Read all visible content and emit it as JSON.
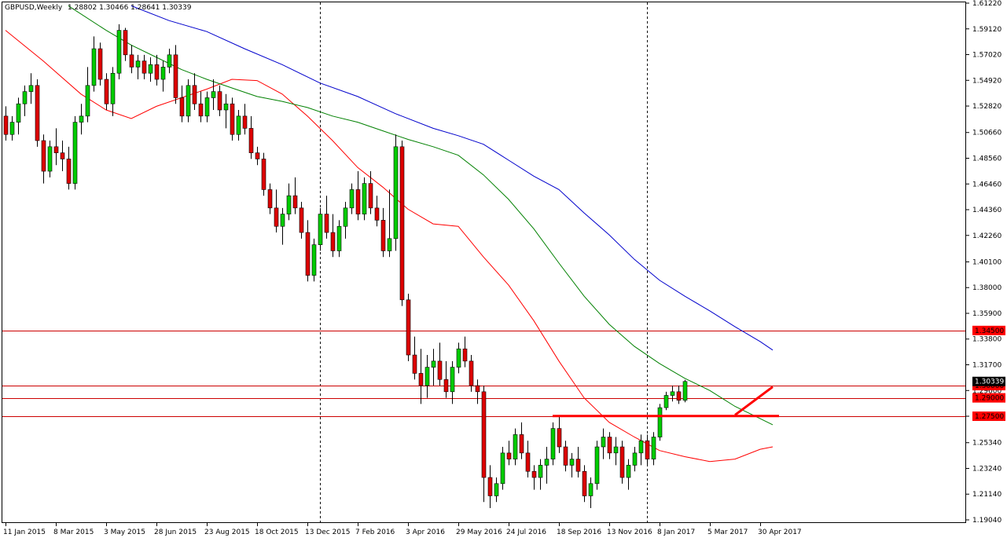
{
  "header": {
    "symbol": "GBPUSD,Weekly",
    "ohlc": "1.28802 1.30466 1.28641 1.30339"
  },
  "colors": {
    "bull": "#00cc00",
    "bear": "#dd0000",
    "wick": "#000000",
    "ma_red": "#ff0000",
    "ma_green": "#008000",
    "ma_blue": "#0000cc",
    "level_line": "#cc0000",
    "level_bg": "#ff0000",
    "axis": "#000000",
    "grid_dashed": "#000000"
  },
  "chart_data": {
    "type": "candlestick",
    "timeframe": "Weekly",
    "ylim": [
      1.19,
      1.6122
    ],
    "y_ticks": [
      1.6122,
      1.5912,
      1.5702,
      1.5492,
      1.5282,
      1.5066,
      1.4856,
      1.4646,
      1.4436,
      1.4226,
      1.401,
      1.38,
      1.359,
      1.338,
      1.317,
      1.296,
      1.275,
      1.2534,
      1.2324,
      1.2114,
      1.1904
    ],
    "x_ticks": [
      {
        "label": "11 Jan 2015",
        "index": 0
      },
      {
        "label": "8 Mar 2015",
        "index": 8
      },
      {
        "label": "3 May 2015",
        "index": 16
      },
      {
        "label": "28 Jun 2015",
        "index": 24
      },
      {
        "label": "23 Aug 2015",
        "index": 32
      },
      {
        "label": "18 Oct 2015",
        "index": 40
      },
      {
        "label": "13 Dec 2015",
        "index": 48
      },
      {
        "label": "7 Feb 2016",
        "index": 56
      },
      {
        "label": "3 Apr 2016",
        "index": 64
      },
      {
        "label": "29 May 2016",
        "index": 72
      },
      {
        "label": "24 Jul 2016",
        "index": 80
      },
      {
        "label": "18 Sep 2016",
        "index": 88
      },
      {
        "label": "13 Nov 2016",
        "index": 96
      },
      {
        "label": "8 Jan 2017",
        "index": 104
      },
      {
        "label": "5 Mar 2017",
        "index": 112
      },
      {
        "label": "30 Apr 2017",
        "index": 120
      }
    ],
    "period_separators": [
      50,
      102
    ],
    "levels": [
      {
        "value": 1.345,
        "label": "1.34500"
      },
      {
        "value": 1.3,
        "label": "1.30000"
      },
      {
        "value": 1.29,
        "label": "1.29000"
      },
      {
        "value": 1.275,
        "label": "1.27500"
      }
    ],
    "current_price": {
      "value": 1.30339,
      "label": "1.30339"
    },
    "drawn_lines": [
      {
        "from": {
          "index": 87,
          "value": 1.2752
        },
        "to": {
          "index": 123,
          "value": 1.2752
        }
      },
      {
        "from": {
          "index": 116,
          "value": 1.276
        },
        "to": {
          "index": 122,
          "value": 1.299
        }
      }
    ],
    "moving_averages": [
      {
        "color_key": "ma_red",
        "points": [
          [
            0,
            1.59
          ],
          [
            6,
            1.565
          ],
          [
            12,
            1.538
          ],
          [
            16,
            1.525
          ],
          [
            20,
            1.518
          ],
          [
            24,
            1.528
          ],
          [
            28,
            1.535
          ],
          [
            32,
            1.542
          ],
          [
            36,
            1.55
          ],
          [
            40,
            1.549
          ],
          [
            44,
            1.538
          ],
          [
            48,
            1.52
          ],
          [
            52,
            1.5
          ],
          [
            56,
            1.478
          ],
          [
            60,
            1.462
          ],
          [
            64,
            1.444
          ],
          [
            68,
            1.432
          ],
          [
            72,
            1.43
          ],
          [
            76,
            1.405
          ],
          [
            80,
            1.382
          ],
          [
            84,
            1.353
          ],
          [
            88,
            1.32
          ],
          [
            92,
            1.29
          ],
          [
            96,
            1.27
          ],
          [
            100,
            1.258
          ],
          [
            104,
            1.247
          ],
          [
            108,
            1.242
          ],
          [
            112,
            1.238
          ],
          [
            116,
            1.24
          ],
          [
            120,
            1.248
          ],
          [
            122,
            1.25
          ]
        ]
      },
      {
        "color_key": "ma_green",
        "points": [
          [
            10,
            1.61
          ],
          [
            16,
            1.59
          ],
          [
            20,
            1.578
          ],
          [
            24,
            1.568
          ],
          [
            28,
            1.558
          ],
          [
            32,
            1.55
          ],
          [
            36,
            1.543
          ],
          [
            40,
            1.536
          ],
          [
            44,
            1.532
          ],
          [
            48,
            1.527
          ],
          [
            52,
            1.52
          ],
          [
            56,
            1.515
          ],
          [
            60,
            1.508
          ],
          [
            64,
            1.501
          ],
          [
            68,
            1.495
          ],
          [
            72,
            1.488
          ],
          [
            76,
            1.472
          ],
          [
            80,
            1.452
          ],
          [
            84,
            1.428
          ],
          [
            88,
            1.4
          ],
          [
            92,
            1.373
          ],
          [
            96,
            1.35
          ],
          [
            100,
            1.332
          ],
          [
            104,
            1.318
          ],
          [
            108,
            1.306
          ],
          [
            112,
            1.296
          ],
          [
            116,
            1.283
          ],
          [
            120,
            1.273
          ],
          [
            122,
            1.268
          ]
        ]
      },
      {
        "color_key": "ma_blue",
        "points": [
          [
            20,
            1.61
          ],
          [
            26,
            1.598
          ],
          [
            32,
            1.589
          ],
          [
            38,
            1.575
          ],
          [
            44,
            1.562
          ],
          [
            50,
            1.547
          ],
          [
            56,
            1.536
          ],
          [
            62,
            1.522
          ],
          [
            68,
            1.51
          ],
          [
            72,
            1.504
          ],
          [
            76,
            1.497
          ],
          [
            80,
            1.484
          ],
          [
            84,
            1.471
          ],
          [
            88,
            1.46
          ],
          [
            92,
            1.441
          ],
          [
            96,
            1.423
          ],
          [
            100,
            1.403
          ],
          [
            104,
            1.386
          ],
          [
            108,
            1.373
          ],
          [
            112,
            1.361
          ],
          [
            116,
            1.348
          ],
          [
            120,
            1.336
          ],
          [
            122,
            1.329
          ]
        ]
      }
    ],
    "candles": [
      [
        1.52,
        1.528,
        1.5,
        1.505
      ],
      [
        1.505,
        1.52,
        1.5,
        1.515
      ],
      [
        1.515,
        1.535,
        1.505,
        1.53
      ],
      [
        1.53,
        1.545,
        1.52,
        1.54
      ],
      [
        1.54,
        1.555,
        1.53,
        1.545
      ],
      [
        1.545,
        1.55,
        1.495,
        1.5
      ],
      [
        1.5,
        1.505,
        1.465,
        1.475
      ],
      [
        1.475,
        1.5,
        1.47,
        1.495
      ],
      [
        1.495,
        1.51,
        1.48,
        1.49
      ],
      [
        1.49,
        1.5,
        1.475,
        1.485
      ],
      [
        1.485,
        1.495,
        1.46,
        1.465
      ],
      [
        1.465,
        1.52,
        1.46,
        1.515
      ],
      [
        1.515,
        1.53,
        1.505,
        1.52
      ],
      [
        1.52,
        1.56,
        1.515,
        1.545
      ],
      [
        1.545,
        1.585,
        1.54,
        1.575
      ],
      [
        1.575,
        1.58,
        1.545,
        1.55
      ],
      [
        1.55,
        1.555,
        1.525,
        1.53
      ],
      [
        1.53,
        1.56,
        1.52,
        1.555
      ],
      [
        1.555,
        1.595,
        1.55,
        1.59
      ],
      [
        1.59,
        1.592,
        1.565,
        1.57
      ],
      [
        1.57,
        1.578,
        1.555,
        1.56
      ],
      [
        1.56,
        1.57,
        1.55,
        1.565
      ],
      [
        1.565,
        1.57,
        1.55,
        1.555
      ],
      [
        1.555,
        1.568,
        1.548,
        1.562
      ],
      [
        1.562,
        1.57,
        1.545,
        1.55
      ],
      [
        1.55,
        1.565,
        1.54,
        1.56
      ],
      [
        1.56,
        1.575,
        1.555,
        1.57
      ],
      [
        1.57,
        1.578,
        1.53,
        1.535
      ],
      [
        1.535,
        1.545,
        1.515,
        1.52
      ],
      [
        1.52,
        1.55,
        1.515,
        1.545
      ],
      [
        1.545,
        1.555,
        1.525,
        1.53
      ],
      [
        1.53,
        1.54,
        1.515,
        1.52
      ],
      [
        1.52,
        1.54,
        1.515,
        1.535
      ],
      [
        1.535,
        1.55,
        1.525,
        1.54
      ],
      [
        1.54,
        1.545,
        1.52,
        1.525
      ],
      [
        1.525,
        1.538,
        1.51,
        1.53
      ],
      [
        1.53,
        1.535,
        1.5,
        1.505
      ],
      [
        1.505,
        1.525,
        1.5,
        1.52
      ],
      [
        1.52,
        1.53,
        1.505,
        1.51
      ],
      [
        1.51,
        1.52,
        1.485,
        1.49
      ],
      [
        1.49,
        1.495,
        1.48,
        1.485
      ],
      [
        1.485,
        1.49,
        1.455,
        1.46
      ],
      [
        1.46,
        1.465,
        1.44,
        1.445
      ],
      [
        1.445,
        1.46,
        1.425,
        1.43
      ],
      [
        1.43,
        1.445,
        1.415,
        1.44
      ],
      [
        1.44,
        1.465,
        1.435,
        1.455
      ],
      [
        1.455,
        1.47,
        1.44,
        1.445
      ],
      [
        1.445,
        1.45,
        1.42,
        1.425
      ],
      [
        1.425,
        1.435,
        1.385,
        1.39
      ],
      [
        1.39,
        1.42,
        1.385,
        1.415
      ],
      [
        1.415,
        1.445,
        1.41,
        1.44
      ],
      [
        1.44,
        1.455,
        1.42,
        1.425
      ],
      [
        1.425,
        1.44,
        1.405,
        1.41
      ],
      [
        1.41,
        1.435,
        1.405,
        1.43
      ],
      [
        1.43,
        1.45,
        1.42,
        1.445
      ],
      [
        1.445,
        1.465,
        1.44,
        1.46
      ],
      [
        1.46,
        1.475,
        1.435,
        1.44
      ],
      [
        1.44,
        1.47,
        1.435,
        1.465
      ],
      [
        1.465,
        1.475,
        1.44,
        1.445
      ],
      [
        1.445,
        1.455,
        1.43,
        1.435
      ],
      [
        1.435,
        1.445,
        1.405,
        1.41
      ],
      [
        1.41,
        1.46,
        1.405,
        1.42
      ],
      [
        1.42,
        1.505,
        1.41,
        1.495
      ],
      [
        1.495,
        1.5,
        1.365,
        1.37
      ],
      [
        1.37,
        1.375,
        1.32,
        1.325
      ],
      [
        1.325,
        1.34,
        1.305,
        1.31
      ],
      [
        1.31,
        1.33,
        1.285,
        1.3
      ],
      [
        1.3,
        1.325,
        1.29,
        1.315
      ],
      [
        1.315,
        1.33,
        1.3,
        1.32
      ],
      [
        1.32,
        1.335,
        1.3,
        1.305
      ],
      [
        1.305,
        1.32,
        1.29,
        1.295
      ],
      [
        1.295,
        1.32,
        1.285,
        1.315
      ],
      [
        1.315,
        1.335,
        1.31,
        1.33
      ],
      [
        1.33,
        1.34,
        1.315,
        1.32
      ],
      [
        1.32,
        1.325,
        1.295,
        1.3
      ],
      [
        1.3,
        1.305,
        1.285,
        1.295
      ],
      [
        1.295,
        1.3,
        1.205,
        1.225
      ],
      [
        1.225,
        1.235,
        1.2,
        1.21
      ],
      [
        1.21,
        1.225,
        1.205,
        1.22
      ],
      [
        1.22,
        1.25,
        1.215,
        1.245
      ],
      [
        1.245,
        1.255,
        1.235,
        1.24
      ],
      [
        1.24,
        1.265,
        1.235,
        1.26
      ],
      [
        1.26,
        1.27,
        1.24,
        1.245
      ],
      [
        1.245,
        1.255,
        1.225,
        1.23
      ],
      [
        1.23,
        1.235,
        1.215,
        1.225
      ],
      [
        1.225,
        1.24,
        1.215,
        1.235
      ],
      [
        1.235,
        1.25,
        1.22,
        1.24
      ],
      [
        1.24,
        1.27,
        1.235,
        1.265
      ],
      [
        1.265,
        1.275,
        1.245,
        1.25
      ],
      [
        1.25,
        1.255,
        1.23,
        1.235
      ],
      [
        1.235,
        1.245,
        1.225,
        1.24
      ],
      [
        1.24,
        1.25,
        1.225,
        1.23
      ],
      [
        1.23,
        1.235,
        1.205,
        1.21
      ],
      [
        1.21,
        1.225,
        1.2,
        1.22
      ],
      [
        1.22,
        1.255,
        1.215,
        1.25
      ],
      [
        1.25,
        1.265,
        1.24,
        1.258
      ],
      [
        1.258,
        1.262,
        1.24,
        1.245
      ],
      [
        1.245,
        1.258,
        1.235,
        1.25
      ],
      [
        1.25,
        1.255,
        1.22,
        1.225
      ],
      [
        1.225,
        1.24,
        1.215,
        1.235
      ],
      [
        1.235,
        1.25,
        1.23,
        1.245
      ],
      [
        1.245,
        1.26,
        1.235,
        1.255
      ],
      [
        1.255,
        1.26,
        1.235,
        1.24
      ],
      [
        1.24,
        1.262,
        1.235,
        1.258
      ],
      [
        1.258,
        1.285,
        1.255,
        1.282
      ],
      [
        1.282,
        1.295,
        1.28,
        1.292
      ],
      [
        1.292,
        1.3,
        1.287,
        1.295
      ],
      [
        1.295,
        1.3,
        1.285,
        1.288
      ],
      [
        1.28802,
        1.30466,
        1.28641,
        1.30339
      ]
    ]
  }
}
